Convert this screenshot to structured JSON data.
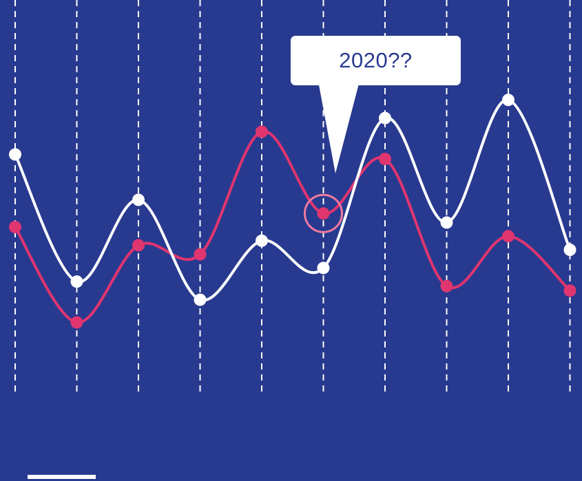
{
  "chart_data": {
    "type": "line",
    "x": [
      1,
      2,
      3,
      4,
      5,
      6,
      7,
      8,
      9,
      10
    ],
    "series": [
      {
        "color": "#ffffff",
        "values": [
          66,
          38,
          56,
          34,
          47,
          41,
          74,
          51,
          78,
          45
        ]
      },
      {
        "color": "#e0356f",
        "values": [
          50,
          29,
          46,
          44,
          71,
          53,
          65,
          37,
          48,
          36
        ]
      }
    ],
    "ylim": [
      0,
      100
    ],
    "grid": {
      "vertical": true,
      "style": "dashed",
      "color": "#ffffff"
    },
    "annotation": {
      "text": "2020??",
      "target_series": 1,
      "target_index": 5
    },
    "colors": {
      "background": "#283a8f",
      "white_series": "#ffffff",
      "pink_series": "#e0356f",
      "highlight_ring": "#f07aa0"
    }
  }
}
